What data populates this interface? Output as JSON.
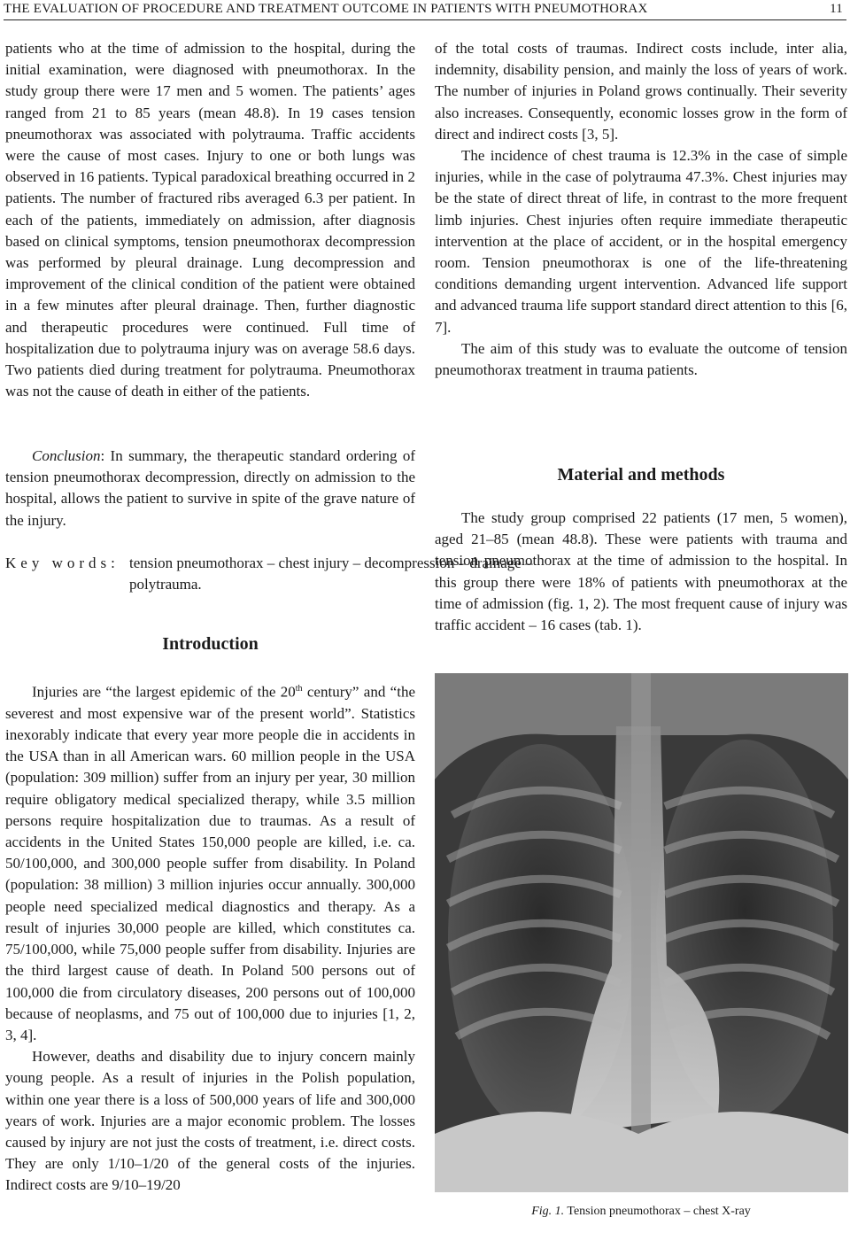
{
  "header": {
    "title": "THE EVALUATION OF PROCEDURE AND TREATMENT OUTCOME IN PATIENTS WITH PNEUMOTHORAX",
    "page": "11"
  },
  "left_column": {
    "abstract": "patients who at the time of admission to the hospital, during the initial examination, were diagnosed with pneumothorax. In the study group there were 17 men and 5 women. The patients’ ages ranged from 21 to 85 years (mean 48.8). In 19 cases tension pneumothorax was associated with polytrauma. Traffic accidents were the cause of most cases. Injury to one or both lungs was observed in 16 patients. Typical paradoxical breathing occurred in 2 patients. The number of fractured ribs averaged 6.3 per patient. In each of the patients, immediately on admission, after diagnosis based on clinical symptoms, tension pneumothorax decompression was performed by pleural drainage. Lung decompression and improvement of the clinical condition of the patient were obtained in a few minutes after pleural drainage. Then, further diagnostic and therapeutic procedures were continued. Full time of hospitalization due to polytrauma injury was on average 58.6 days. Two patients died during treatment for polytrauma. Pneumothorax was not the cause of death in either of the patients.",
    "conclusion": {
      "label": "Conclusion",
      "text": ": In summary, the therapeutic standard ordering of tension pneumothorax decompression, directly on admission to the hospital, allows the patient to survive in spite of the grave nature of the injury."
    },
    "keywords": {
      "label": "Key words:",
      "text": "tension pneumothorax – chest injury – decompression – drainage – polytrauma."
    },
    "introduction": {
      "heading": "Introduction",
      "paragraph_1": {
        "before": "Injuries are “the largest epidemic of the 20",
        "sup": "th",
        "after": " century” and “the severest and most expensive war of the present world”. Statistics inexorably indicate that every year more people die in accidents in the USA than in all American wars. 60 million people in the USA (population: 309 million) suffer from an injury per year, 30 million require obligatory medical specialized therapy, while 3.5 million persons require hospitalization due to traumas. As a result of accidents in the United States 150,000 people are killed, i.e. ca. 50/100,000, and 300,000 people suffer from disability. In Poland (population: 38 million) 3 million injuries occur annually. 300,000 people need specialized medical diagnostics and therapy. As a result of injuries 30,000 people are killed, which constitutes ca. 75/100,000, while 75,000 people suffer from disability. Injuries are the third largest cause of death. In Poland 500 persons out of 100,000 die from circulatory diseases, 200 persons out of 100,000 because of neoplasms, and 75 out of 100,000 due to injuries [1, 2, 3, 4]."
      },
      "paragraph_2": "However, deaths and disability due to injury concern mainly young people. As a result of injuries in the Polish population, within one year there is a loss of 500,000 years of life and 300,000 years of work. Injuries are a major economic problem. The losses caused by injury are not just the costs of treatment, i.e. direct costs. They are only 1/10–1/20 of the general costs of the injuries. Indirect costs are 9/10–19/20"
    }
  },
  "right_column": {
    "paragraphs": [
      "of the total costs of traumas. Indirect costs include, inter alia, indemnity, disability pension, and mainly the loss of years of work. The number of injuries in Poland grows continually. Their severity also increases. Consequently, economic losses grow in the form of direct and indirect costs [3, 5].",
      "The incidence of chest trauma is 12.3% in the case of simple injuries, while in the case of polytrauma 47.3%. Chest injuries may be the state of direct threat of life, in contrast to the more frequent limb injuries. Chest injuries often require immediate therapeutic intervention at the place of accident, or in the hospital emergency room. Tension pneumothorax is one of the life-threatening conditions demanding urgent intervention. Advanced life support and advanced trauma life support standard direct attention to this [6, 7].",
      "The aim of this study was to evaluate the outcome of tension pneumothorax treatment in trauma patients."
    ],
    "methods": {
      "heading": "Material and methods",
      "paragraph": "The study group comprised 22 patients (17 men, 5 women), aged 21–85 (mean 48.8). These were patients with trauma and tension pneumothorax at the time of admission to the hospital. In this group there were 18% of patients with pneumothorax at the time of admission (fig. 1, 2). The most frequent cause of injury was traffic accident – 16 cases (tab. 1)."
    }
  },
  "figure": {
    "label": "Fig. 1.",
    "caption": "Tension pneumothorax – chest X-ray"
  }
}
